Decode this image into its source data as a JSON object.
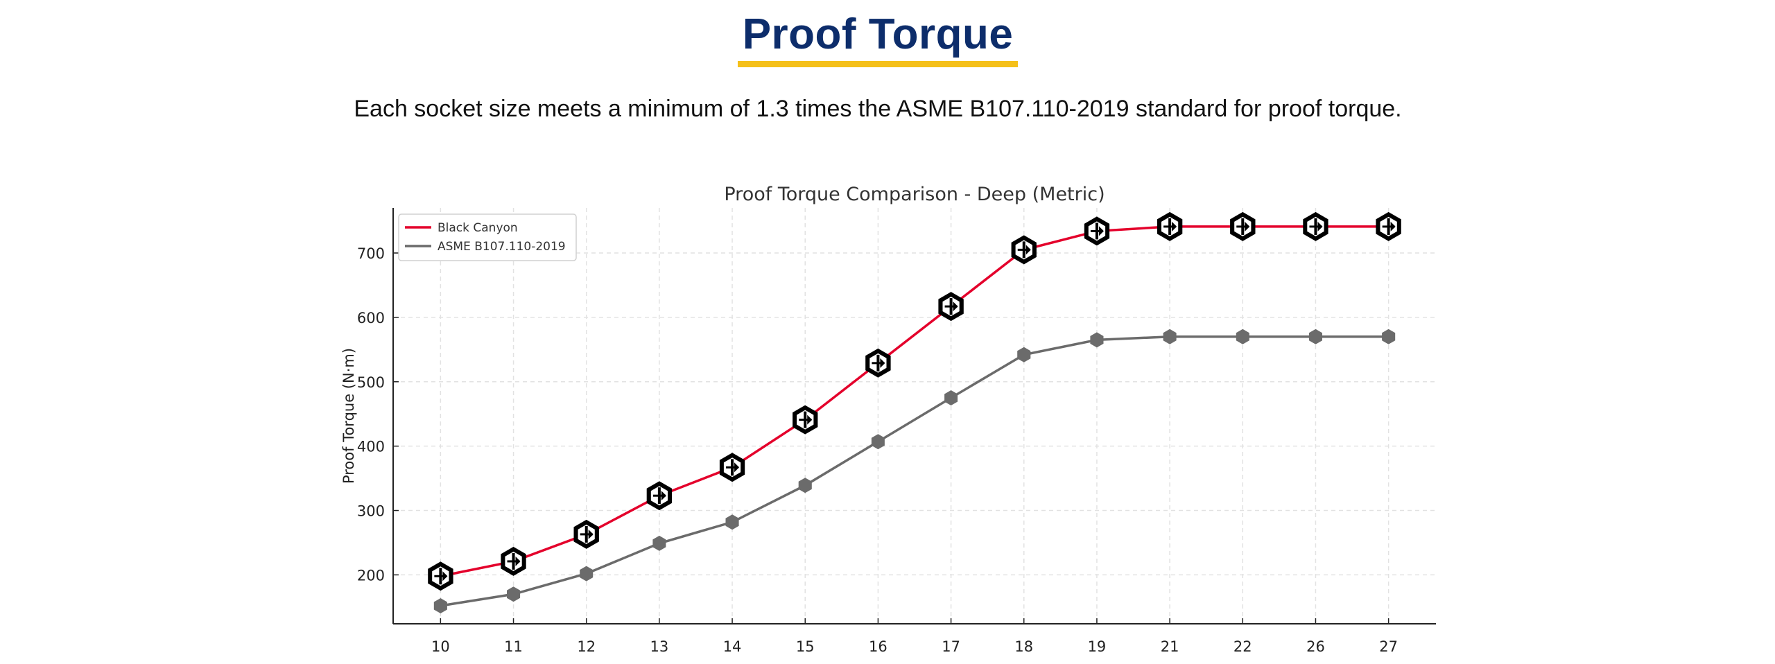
{
  "header": {
    "title": "Proof Torque",
    "subtitle": "Each socket size meets a minimum of 1.3 times the ASME B107.110-2019 standard for proof torque."
  },
  "colors": {
    "title": "#0d2d6b",
    "underline": "#f5c01a",
    "black_canyon": "#e4002b",
    "asme": "#6b6b6b"
  },
  "chart_data": {
    "type": "line",
    "title": "Proof Torque Comparison - Deep (Metric)",
    "xlabel": "",
    "ylabel": "Proof Torque (N·m)",
    "categories": [
      "10",
      "11",
      "12",
      "13",
      "14",
      "15",
      "16",
      "17",
      "18",
      "19",
      "21",
      "22",
      "26",
      "27"
    ],
    "series": [
      {
        "name": "Black Canyon",
        "color": "#e4002b",
        "marker": "logo-hexagon",
        "values": [
          198,
          221,
          263,
          323,
          367,
          441,
          529,
          617,
          705,
          734,
          741,
          741,
          741,
          741
        ]
      },
      {
        "name": "ASME B107.110-2019",
        "color": "#6b6b6b",
        "marker": "hexagon",
        "values": [
          152,
          170,
          202,
          249,
          282,
          339,
          407,
          475,
          542,
          565,
          570,
          570,
          570,
          570
        ]
      }
    ],
    "yticks": [
      200,
      300,
      400,
      500,
      600,
      700
    ],
    "ylim": [
      124,
      770
    ],
    "grid": true,
    "legend_position": "top-left"
  }
}
